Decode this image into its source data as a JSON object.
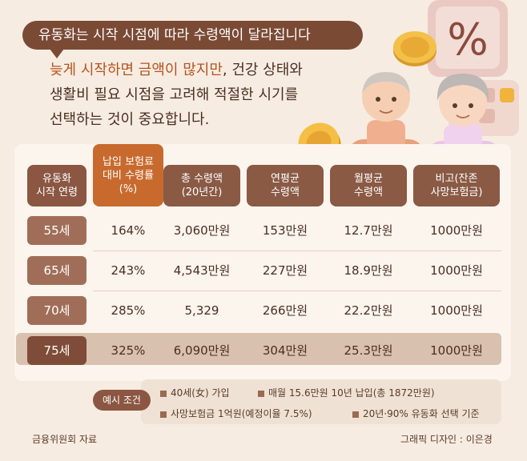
{
  "headline": "유동화는 시작 시점에 따라 수령액이 달라집니다",
  "intro": {
    "line1_pre": "늦게 시작하면 금액이 많지만",
    "line1_post": ", 건강 상태와",
    "line2": "생활비 필요 시점을 고려해 적절한 시기를",
    "line3": "선택하는 것이 중요합니다."
  },
  "icons": [
    "percent-calculator-icon",
    "gold-coin-icon",
    "elderly-couple-icon"
  ],
  "colors": {
    "header": "#8a5a45",
    "highlight": "#c86a2e",
    "row_label": "#a06e58",
    "highlight_row": "#d8c1ae"
  },
  "chart_data": {
    "type": "table",
    "headers": [
      {
        "line1": "유동화",
        "line2": "시작 연령"
      },
      {
        "line1": "납입 보험료",
        "line2": "대비 수령률",
        "line3": "(%)"
      },
      {
        "line1": "총 수령액",
        "line2": "(20년간)"
      },
      {
        "line1": "연평균",
        "line2": "수령액"
      },
      {
        "line1": "월평균",
        "line2": "수령액"
      },
      {
        "line1": "비고(잔존",
        "line2": "사망보험금)"
      }
    ],
    "rows": [
      {
        "age": "55세",
        "ratio": "164%",
        "total": "3,060만원",
        "annual": "153만원",
        "monthly": "12.7만원",
        "note": "1000만원"
      },
      {
        "age": "65세",
        "ratio": "243%",
        "total": "4,543만원",
        "annual": "227만원",
        "monthly": "18.9만원",
        "note": "1000만원"
      },
      {
        "age": "70세",
        "ratio": "285%",
        "total": "5,329",
        "annual": "266만원",
        "monthly": "22.2만원",
        "note": "1000만원"
      },
      {
        "age": "75세",
        "ratio": "325%",
        "total": "6,090만원",
        "annual": "304만원",
        "monthly": "25.3만원",
        "note": "1000만원"
      }
    ],
    "highlighted_row": "75세"
  },
  "example": {
    "label": "예시 조건",
    "items": [
      "40세(女) 가입",
      "매월 15.6만원 10년 납입(총 1872만원)",
      "사망보험금 1억원(예정이율 7.5%)",
      "20년·90% 유동화 선택 기준"
    ]
  },
  "footer": {
    "source": "금융위원회 자료",
    "credit": "그래픽 디자인 : 이은경"
  }
}
